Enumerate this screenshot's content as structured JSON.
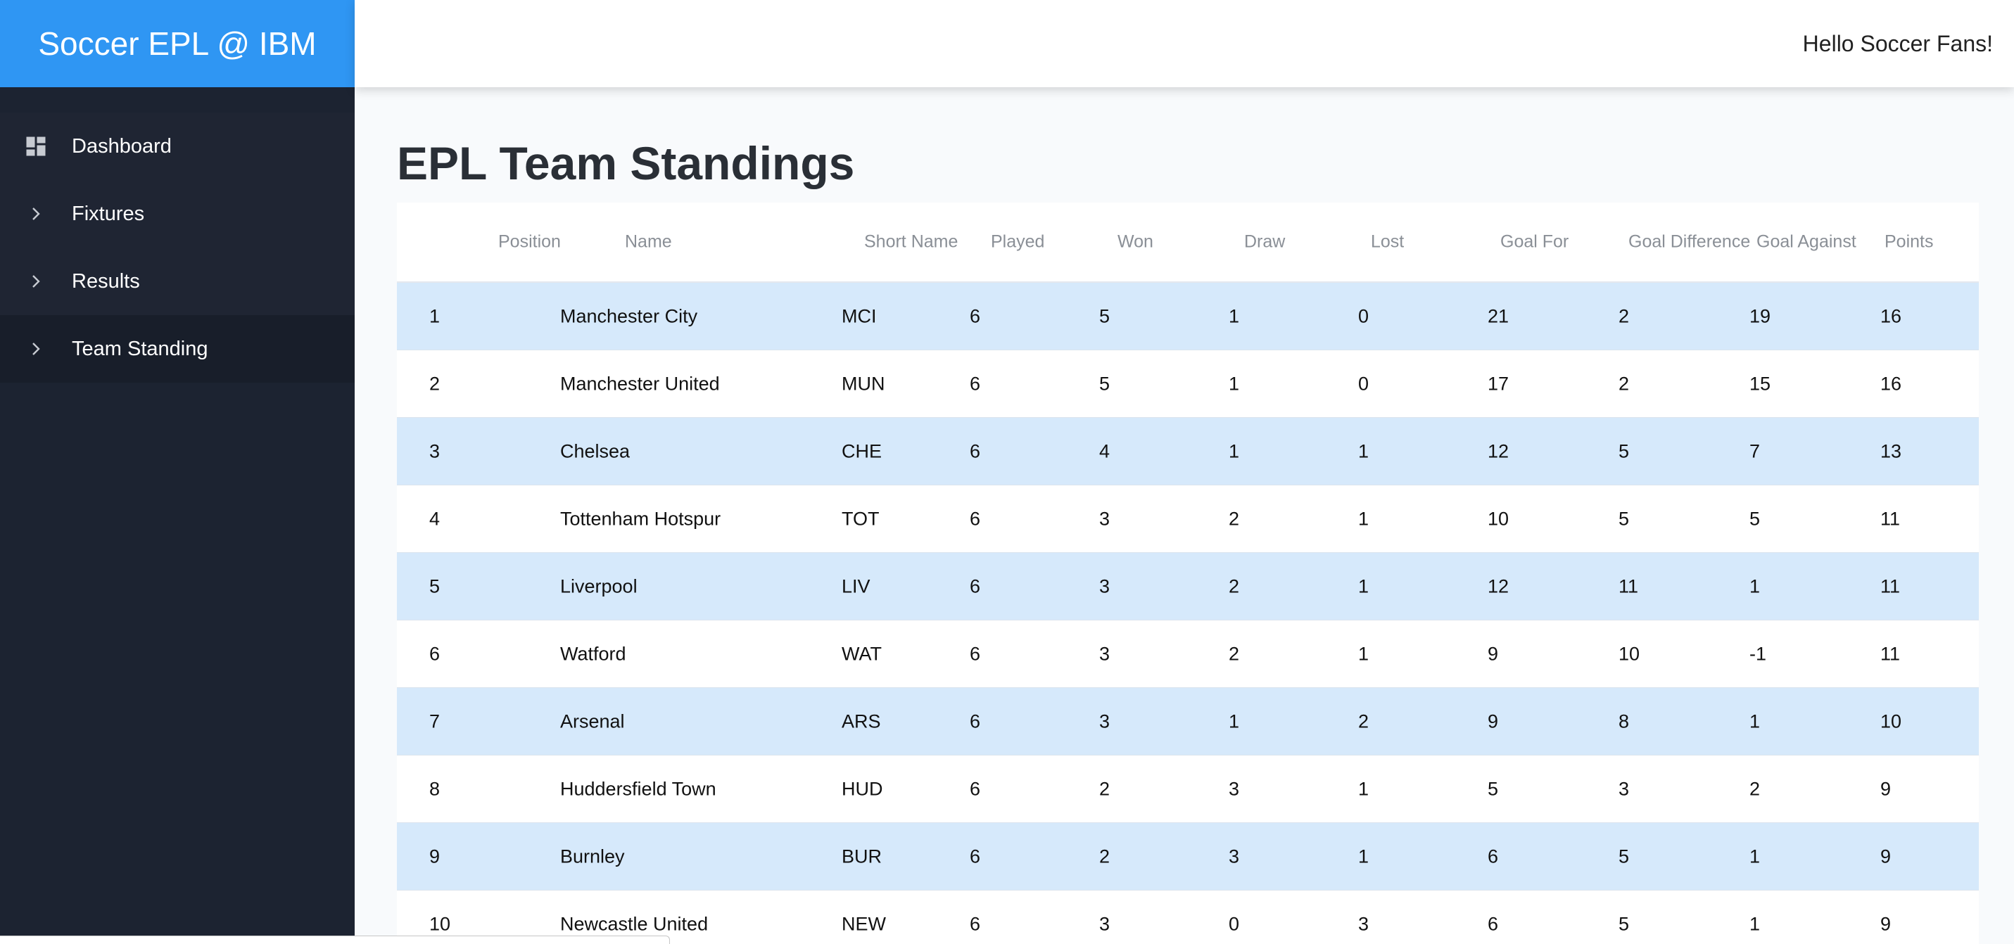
{
  "app": {
    "brand": "Soccer EPL @ IBM",
    "greeting": "Hello Soccer Fans!"
  },
  "colors": {
    "brand_bg": "#2f96f3",
    "sidebar_bg": "#1c2331",
    "row_alt_bg": "#d6e9fb"
  },
  "sidebar": {
    "items": [
      {
        "label": "Dashboard",
        "icon": "dashboard-icon"
      },
      {
        "label": "Fixtures",
        "icon": "chevron-right-icon"
      },
      {
        "label": "Results",
        "icon": "chevron-right-icon"
      },
      {
        "label": "Team Standing",
        "icon": "chevron-right-icon"
      }
    ]
  },
  "main": {
    "title": "EPL Team Standings"
  },
  "table": {
    "headers": [
      "Position",
      "Name",
      "Short Name",
      "Played",
      "Won",
      "Draw",
      "Lost",
      "Goal For",
      "Goal Difference",
      "Goal Against",
      "Points"
    ],
    "rows": [
      [
        "1",
        "Manchester City",
        "MCI",
        "6",
        "5",
        "1",
        "0",
        "21",
        "2",
        "19",
        "16"
      ],
      [
        "2",
        "Manchester United",
        "MUN",
        "6",
        "5",
        "1",
        "0",
        "17",
        "2",
        "15",
        "16"
      ],
      [
        "3",
        "Chelsea",
        "CHE",
        "6",
        "4",
        "1",
        "1",
        "12",
        "5",
        "7",
        "13"
      ],
      [
        "4",
        "Tottenham Hotspur",
        "TOT",
        "6",
        "3",
        "2",
        "1",
        "10",
        "5",
        "5",
        "11"
      ],
      [
        "5",
        "Liverpool",
        "LIV",
        "6",
        "3",
        "2",
        "1",
        "12",
        "11",
        "1",
        "11"
      ],
      [
        "6",
        "Watford",
        "WAT",
        "6",
        "3",
        "2",
        "1",
        "9",
        "10",
        "-1",
        "11"
      ],
      [
        "7",
        "Arsenal",
        "ARS",
        "6",
        "3",
        "1",
        "2",
        "9",
        "8",
        "1",
        "10"
      ],
      [
        "8",
        "Huddersfield Town",
        "HUD",
        "6",
        "2",
        "3",
        "1",
        "5",
        "3",
        "2",
        "9"
      ],
      [
        "9",
        "Burnley",
        "BUR",
        "6",
        "2",
        "3",
        "1",
        "6",
        "5",
        "1",
        "9"
      ],
      [
        "10",
        "Newcastle United",
        "NEW",
        "6",
        "3",
        "0",
        "3",
        "6",
        "5",
        "1",
        "9"
      ]
    ]
  }
}
